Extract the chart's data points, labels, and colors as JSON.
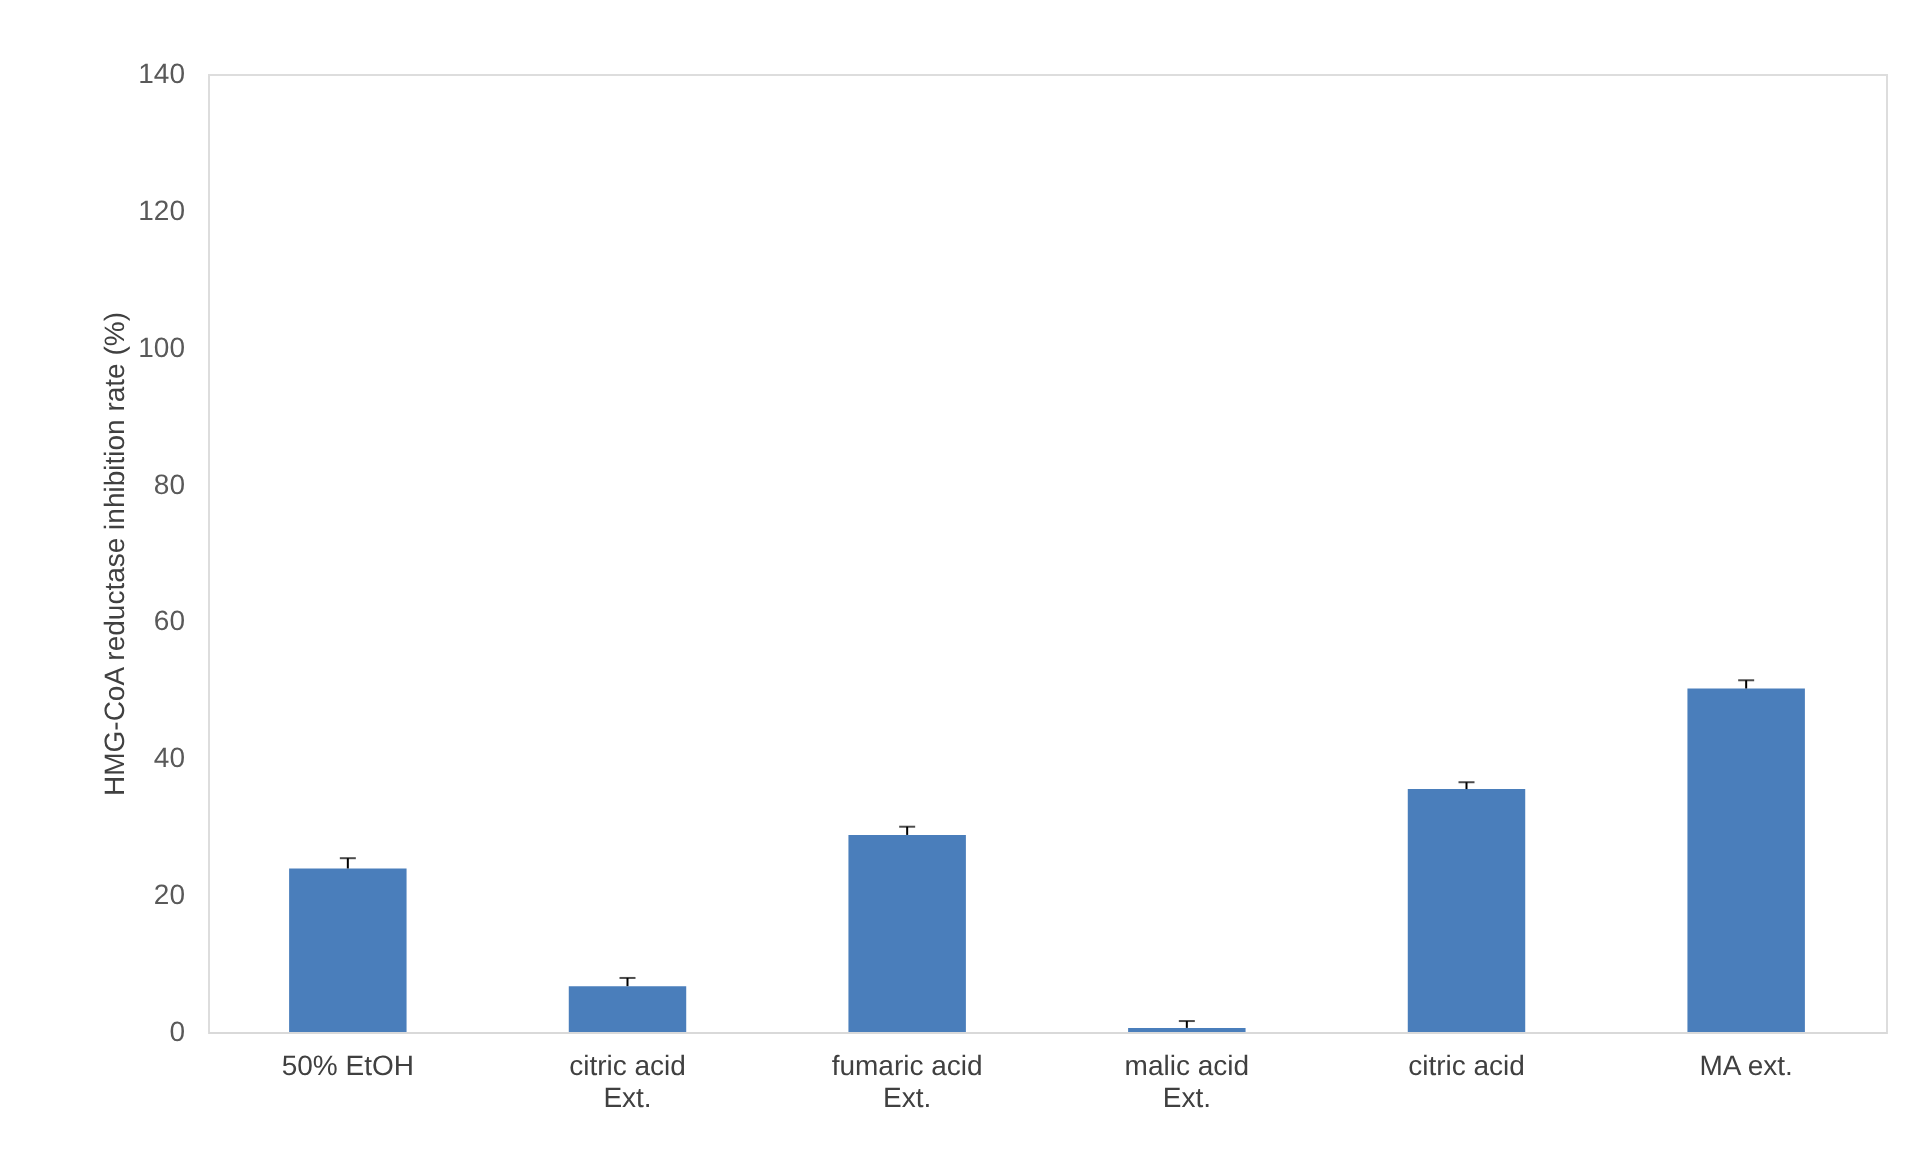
{
  "chart_data": {
    "type": "bar",
    "ylabel": "HMG-CoA reductase inhibition rate (%)",
    "categories": [
      "50% EtOH",
      "citric acid\nExt.",
      "fumaric acid\nExt.",
      "malic acid\nExt.",
      "citric acid",
      "MA ext."
    ],
    "values": [
      23.9,
      6.7,
      28.8,
      0.6,
      35.5,
      50.2
    ],
    "errors": [
      [
        23.9,
        25.4
      ],
      [
        6.7,
        7.9
      ],
      [
        28.8,
        30.0
      ],
      [
        0.6,
        1.6
      ],
      [
        35.5,
        36.5
      ],
      [
        50.2,
        51.4
      ]
    ],
    "color": "#4a7ebb",
    "ylim": [
      0,
      140
    ],
    "yticks": [
      0,
      20,
      40,
      60,
      80,
      100,
      120,
      140
    ],
    "grid": false
  }
}
